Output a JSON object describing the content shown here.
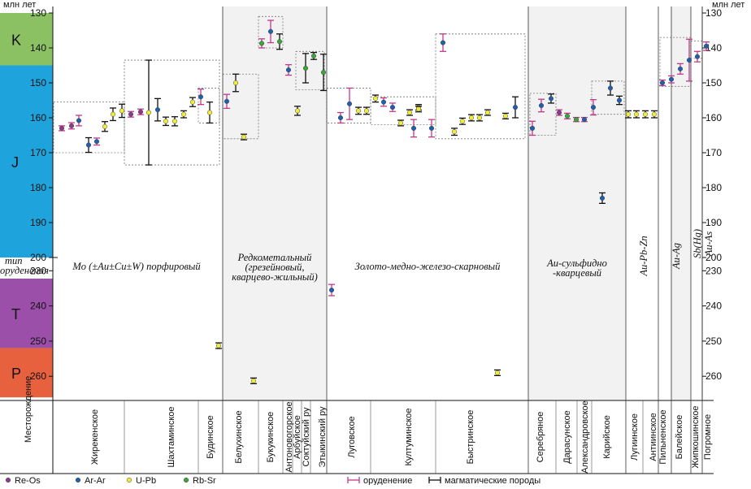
{
  "chart_data": {
    "type": "scatter",
    "title": "",
    "ylabel_left": "млн лет",
    "ylabel_right": "млн лет",
    "xlabel": "Месторождение",
    "type_label": "тип оруденения",
    "ylim": [
      130,
      266
    ],
    "y_ticks": [
      130,
      140,
      150,
      160,
      170,
      180,
      190,
      200,
      230,
      240,
      250,
      260
    ],
    "y_break": {
      "from": 200,
      "to": 226
    },
    "eras": [
      {
        "label": "K",
        "from": 130,
        "to": 145,
        "color": "#8bc163"
      },
      {
        "label": "J",
        "from": 145,
        "to": 201,
        "color": "#1ea3dc"
      },
      {
        "label": "T",
        "from": 201,
        "to": 252,
        "color": "#9b4fa8"
      },
      {
        "label": "P",
        "from": 252,
        "to": 266,
        "color": "#e8613e"
      }
    ],
    "types": [
      "Mo (±Au±Cu±W) порфировый",
      "Редкометальный (грезейновый, кварцево-жильный)",
      "Золото-медно-железо-скарновый",
      "Au-сульфидно -кварцевый",
      "Au-Pb-Zn",
      "Au-Ag",
      "Sb(Hg)",
      "Au-As"
    ],
    "deposits": [
      "Жирекенское",
      "Шахтаминское",
      "Будинское",
      "Белухинское",
      "Букукинское",
      "Антоновогорское",
      "Арбуйское",
      "Соктуйский ру",
      "Этыкинский ру",
      "Луговское",
      "Култуминское",
      "Быстринское",
      "Серебряное",
      "Дарасунское",
      "Александровское",
      "Карийское",
      "Лугиинское",
      "Антиинское",
      "Пильненское",
      "Балейское",
      "Жипкошинское",
      "Погромное"
    ],
    "methods": [
      {
        "name": "Re-Os",
        "color": "#8e3a8a"
      },
      {
        "name": "Ar-Ar",
        "color": "#1f5fae"
      },
      {
        "name": "U-Pb",
        "color": "#f1ec3a"
      },
      {
        "name": "Rb-Sr",
        "color": "#3aa63a"
      }
    ],
    "error_bar_types": [
      {
        "name": "оруденение",
        "color": "#c2388a"
      },
      {
        "name": "магматические породы",
        "color": "#111111"
      }
    ],
    "points": [
      {
        "deposit": "Жирекенское",
        "method": "Re-Os",
        "bar": "оруденение",
        "y": 163,
        "err": 0.7
      },
      {
        "deposit": "Жирекенское",
        "method": "Re-Os",
        "bar": "оруденение",
        "y": 162.3,
        "err": 0.9
      },
      {
        "deposit": "Жирекенское",
        "method": "Ar-Ar",
        "bar": "оруденение",
        "y": 160.8,
        "err": 1.5
      },
      {
        "deposit": "Жирекенское",
        "method": "Ar-Ar",
        "bar": "магматические породы",
        "y": 167.8,
        "err": 2.1
      },
      {
        "deposit": "Жирекенское",
        "method": "Ar-Ar",
        "bar": "оруденение",
        "y": 166.8,
        "err": 1.0
      },
      {
        "deposit": "Жирекенское",
        "method": "U-Pb",
        "bar": "магматические породы",
        "y": 162.5,
        "err": 1.4
      },
      {
        "deposit": "Жирекенское",
        "method": "U-Pb",
        "bar": "магматические породы",
        "y": 159,
        "err": 1.8
      },
      {
        "deposit": "Жирекенское",
        "method": "U-Pb",
        "bar": "магматические породы",
        "y": 158,
        "err": 1.9
      },
      {
        "deposit": "Шахтаминское",
        "method": "Re-Os",
        "bar": "оруденение",
        "y": 159,
        "err": 0.8
      },
      {
        "deposit": "Шахтаминское",
        "method": "Re-Os",
        "bar": "оруденение",
        "y": 158.3,
        "err": 0.8
      },
      {
        "deposit": "Шахтаминское",
        "method": "U-Pb",
        "bar": "магматические породы",
        "y": 158.5,
        "err": 15
      },
      {
        "deposit": "Шахтаминское",
        "method": "Ar-Ar",
        "bar": "магматические породы",
        "y": 157.7,
        "err": 3.2
      },
      {
        "deposit": "Шахтаминское",
        "method": "U-Pb",
        "bar": "магматические породы",
        "y": 161,
        "err": 1.2
      },
      {
        "deposit": "Шахтаминское",
        "method": "U-Pb",
        "bar": "магматические породы",
        "y": 161,
        "err": 1.3
      },
      {
        "deposit": "Шахтаминское",
        "method": "U-Pb",
        "bar": "магматические породы",
        "y": 159,
        "err": 1.0
      },
      {
        "deposit": "Шахтаминское",
        "method": "U-Pb",
        "bar": "магматические породы",
        "y": 155.5,
        "err": 1.3
      },
      {
        "deposit": "Будинское",
        "method": "Ar-Ar",
        "bar": "оруденение",
        "y": 154,
        "err": 2.2
      },
      {
        "deposit": "Будинское",
        "method": "U-Pb",
        "bar": "магматические породы",
        "y": 158.5,
        "err": 3.0
      },
      {
        "deposit": "Будинское",
        "method": "U-Pb",
        "bar": "магматические породы",
        "y": 251.3,
        "err": 0.8
      },
      {
        "deposit": "Белухинское",
        "method": "Ar-Ar",
        "bar": "оруденение",
        "y": 155.3,
        "err": 2.0
      },
      {
        "deposit": "Белухинское",
        "method": "U-Pb",
        "bar": "магматические породы",
        "y": 150,
        "err": 2.5
      },
      {
        "deposit": "Белухинское",
        "method": "U-Pb",
        "bar": "магматические породы",
        "y": 165.5,
        "err": 0.8
      },
      {
        "deposit": "Белухинское",
        "method": "U-Pb",
        "bar": "магматические породы",
        "y": 261.3,
        "err": 0.8
      },
      {
        "deposit": "Букукинское",
        "method": "Rb-Sr",
        "bar": "оруденение",
        "y": 138.7,
        "err": 1.3
      },
      {
        "deposit": "Букукинское",
        "method": "Ar-Ar",
        "bar": "оруденение",
        "y": 135.3,
        "err": 3.2
      },
      {
        "deposit": "Букукинское",
        "method": "Rb-Sr",
        "bar": "магматические породы",
        "y": 138.2,
        "err": 2.2
      },
      {
        "deposit": "Антоновогорское",
        "method": "Ar-Ar",
        "bar": "оруденение",
        "y": 146.3,
        "err": 1.5
      },
      {
        "deposit": "Арбуйское",
        "method": "U-Pb",
        "bar": "магматические породы",
        "y": 158,
        "err": 1.3
      },
      {
        "deposit": "Соктуйский ру",
        "method": "Rb-Sr",
        "bar": "магматические породы",
        "y": 145.8,
        "err": 4.2
      },
      {
        "deposit": "Соктуйский ру",
        "method": "Rb-Sr",
        "bar": "магматические породы",
        "y": 142.3,
        "err": 1.0
      },
      {
        "deposit": "Этыкинский ру",
        "method": "Rb-Sr",
        "bar": "магматические породы",
        "y": 147,
        "err": 5.2
      },
      {
        "deposit": "Луговское",
        "method": "Ar-Ar",
        "bar": "оруденение",
        "y": 235.5,
        "err": 1.6
      },
      {
        "deposit": "Луговское",
        "method": "Ar-Ar",
        "bar": "оруденение",
        "y": 160,
        "err": 1.5
      },
      {
        "deposit": "Луговское",
        "method": "Ar-Ar",
        "bar": "оруденение",
        "y": 156,
        "err": 4.5
      },
      {
        "deposit": "Луговское",
        "method": "U-Pb",
        "bar": "магматические породы",
        "y": 158,
        "err": 1.0
      },
      {
        "deposit": "Луговское",
        "method": "U-Pb",
        "bar": "магматические породы",
        "y": 158,
        "err": 1.0
      },
      {
        "deposit": "Луговское",
        "method": "U-Pb",
        "bar": "магматические породы",
        "y": 154.5,
        "err": 1.0
      },
      {
        "deposit": "Култуминское",
        "method": "Ar-Ar",
        "bar": "оруденение",
        "y": 155.5,
        "err": 1.2
      },
      {
        "deposit": "Култуминское",
        "method": "Ar-Ar",
        "bar": "оруденение",
        "y": 157,
        "err": 1.2
      },
      {
        "deposit": "Култуминское",
        "method": "U-Pb",
        "bar": "магматические породы",
        "y": 161.5,
        "err": 0.8
      },
      {
        "deposit": "Култуминское",
        "method": "U-Pb",
        "bar": "магматические породы",
        "y": 158.5,
        "err": 0.8
      },
      {
        "deposit": "Култуминское",
        "method": "U-Pb",
        "bar": "магматические породы",
        "y": 157,
        "err": 0.8
      },
      {
        "deposit": "Култуминское",
        "method": "U-Pb",
        "bar": "магматические породы",
        "y": 157.5,
        "err": 0.8
      },
      {
        "deposit": "Быстринское",
        "method": "Ar-Ar",
        "bar": "оруденение",
        "y": 163,
        "err": 2.5
      },
      {
        "deposit": "Быстринское",
        "method": "Ar-Ar",
        "bar": "оруденение",
        "y": 138.5,
        "err": 2.5
      },
      {
        "deposit": "Быстринское",
        "method": "Ar-Ar",
        "bar": "оруденение",
        "y": 163,
        "err": 2.5
      },
      {
        "deposit": "Быстринское",
        "method": "U-Pb",
        "bar": "магматические породы",
        "y": 164,
        "err": 1.0
      },
      {
        "deposit": "Быстринское",
        "method": "U-Pb",
        "bar": "магматические породы",
        "y": 161,
        "err": 0.9
      },
      {
        "deposit": "Быстринское",
        "method": "U-Pb",
        "bar": "магматические породы",
        "y": 160,
        "err": 0.9
      },
      {
        "deposit": "Быстринское",
        "method": "U-Pb",
        "bar": "магматические породы",
        "y": 160,
        "err": 0.9
      },
      {
        "deposit": "Быстринское",
        "method": "U-Pb",
        "bar": "магматические породы",
        "y": 259,
        "err": 0.8
      },
      {
        "deposit": "Быстринское",
        "method": "U-Pb",
        "bar": "магматические породы",
        "y": 158.5,
        "err": 0.8
      },
      {
        "deposit": "Быстринское",
        "method": "U-Pb",
        "bar": "магматические породы",
        "y": 159.5,
        "err": 0.8
      },
      {
        "deposit": "Быстринское",
        "method": "Ar-Ar",
        "bar": "магматические породы",
        "y": 157,
        "err": 3.0
      },
      {
        "deposit": "Серебряное",
        "method": "Ar-Ar",
        "bar": "оруденение",
        "y": 163,
        "err": 2.0
      },
      {
        "deposit": "Серебряное",
        "method": "Ar-Ar",
        "bar": "оруденение",
        "y": 156.5,
        "err": 1.8
      },
      {
        "deposit": "Серебряное",
        "method": "Ar-Ar",
        "bar": "магматические породы",
        "y": 154.5,
        "err": 1.3
      },
      {
        "deposit": "Дарасунское",
        "method": "Re-Os",
        "bar": "оруденение",
        "y": 158.5,
        "err": 0.8
      },
      {
        "deposit": "Дарасунское",
        "method": "Rb-Sr",
        "bar": "оруденение",
        "y": 159.5,
        "err": 0.8
      },
      {
        "deposit": "Александровское",
        "method": "Rb-Sr",
        "bar": "оруденение",
        "y": 160.5,
        "err": 0.6
      },
      {
        "deposit": "Александровское",
        "method": "Ar-Ar",
        "bar": "оруденение",
        "y": 160.5,
        "err": 0.6
      },
      {
        "deposit": "Карийское",
        "method": "Ar-Ar",
        "bar": "оруденение",
        "y": 157,
        "err": 2.2
      },
      {
        "deposit": "Карийское",
        "method": "Ar-Ar",
        "bar": "магматические породы",
        "y": 183,
        "err": 1.5
      },
      {
        "deposit": "Карийское",
        "method": "Ar-Ar",
        "bar": "магматические породы",
        "y": 151.5,
        "err": 2.0
      },
      {
        "deposit": "Карийское",
        "method": "Ar-Ar",
        "bar": "магматические породы",
        "y": 155,
        "err": 1.2
      },
      {
        "deposit": "Лугиинское",
        "method": "U-Pb",
        "bar": "магматические породы",
        "y": 159,
        "err": 1.0
      },
      {
        "deposit": "Лугиинское",
        "method": "U-Pb",
        "bar": "магматические породы",
        "y": 159,
        "err": 1.0
      },
      {
        "deposit": "Лугиинское",
        "method": "U-Pb",
        "bar": "магматические породы",
        "y": 159,
        "err": 1.0
      },
      {
        "deposit": "Антиинское",
        "method": "U-Pb",
        "bar": "магматические породы",
        "y": 159,
        "err": 1.0
      },
      {
        "deposit": "Пильненское",
        "method": "Ar-Ar",
        "bar": "оруденение",
        "y": 150,
        "err": 0.8
      },
      {
        "deposit": "Пильненское",
        "method": "Ar-Ar",
        "bar": "оруденение",
        "y": 149,
        "err": 1.0
      },
      {
        "deposit": "Балейское",
        "method": "Ar-Ar",
        "bar": "оруденение",
        "y": 146,
        "err": 1.5
      },
      {
        "deposit": "Балейское",
        "method": "Ar-Ar",
        "bar": "оруденение",
        "y": 143.5,
        "err": 6.0
      },
      {
        "deposit": "Жипкошинское",
        "method": "Ar-Ar",
        "bar": "оруденение",
        "y": 142.5,
        "err": 1.5
      },
      {
        "deposit": "Погромное",
        "method": "Ar-Ar",
        "bar": "оруденение",
        "y": 139.5,
        "err": 1.2
      }
    ]
  }
}
